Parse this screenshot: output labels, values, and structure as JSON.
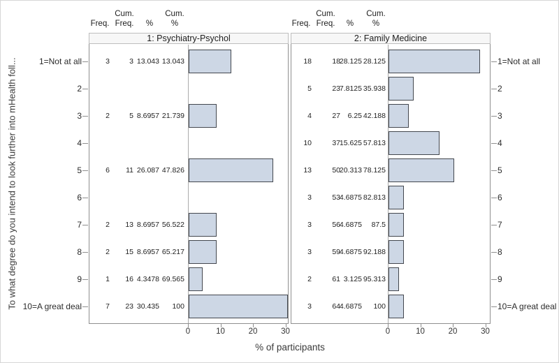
{
  "chart_data": {
    "type": "bar",
    "orientation": "horizontal",
    "title": "",
    "xlabel": "% of participants",
    "ylabel": "To what degree do you intend to look further into mHealth foll...",
    "x_ticks": [
      0,
      10,
      20,
      30
    ],
    "xlim": [
      0,
      31
    ],
    "grid": "off",
    "bar_fill": "#cdd7e5",
    "bar_border": "#43474e",
    "categories": [
      "1=Not at all",
      "2",
      "3",
      "4",
      "5",
      "6",
      "7",
      "8",
      "9",
      "10=A great deal"
    ],
    "column_headers": [
      {
        "line1": "",
        "line2": "Freq."
      },
      {
        "line1": "Cum.",
        "line2": "Freq."
      },
      {
        "line1": "",
        "line2": "%"
      },
      {
        "line1": "Cum.",
        "line2": "%"
      }
    ],
    "panels": [
      {
        "title": "1: Psychiatry-Psychol",
        "rows": [
          {
            "freq": "3",
            "cum_freq": "3",
            "pct": "13.043",
            "cum_pct": "13.043",
            "bar_pct": 13.043
          },
          {
            "freq": "",
            "cum_freq": "",
            "pct": "",
            "cum_pct": "",
            "bar_pct": null
          },
          {
            "freq": "2",
            "cum_freq": "5",
            "pct": "8.6957",
            "cum_pct": "21.739",
            "bar_pct": 8.6957
          },
          {
            "freq": "",
            "cum_freq": "",
            "pct": "",
            "cum_pct": "",
            "bar_pct": null
          },
          {
            "freq": "6",
            "cum_freq": "11",
            "pct": "26.087",
            "cum_pct": "47.826",
            "bar_pct": 26.087
          },
          {
            "freq": "",
            "cum_freq": "",
            "pct": "",
            "cum_pct": "",
            "bar_pct": null
          },
          {
            "freq": "2",
            "cum_freq": "13",
            "pct": "8.6957",
            "cum_pct": "56.522",
            "bar_pct": 8.6957
          },
          {
            "freq": "2",
            "cum_freq": "15",
            "pct": "8.6957",
            "cum_pct": "65.217",
            "bar_pct": 8.6957
          },
          {
            "freq": "1",
            "cum_freq": "16",
            "pct": "4.3478",
            "cum_pct": "69.565",
            "bar_pct": 4.3478
          },
          {
            "freq": "7",
            "cum_freq": "23",
            "pct": "30.435",
            "cum_pct": "100",
            "bar_pct": 30.435
          }
        ]
      },
      {
        "title": "2: Family Medicine",
        "rows": [
          {
            "freq": "18",
            "cum_freq": "18",
            "pct": "28.125",
            "cum_pct": "28.125",
            "bar_pct": 28.125
          },
          {
            "freq": "5",
            "cum_freq": "23",
            "pct": "7.8125",
            "cum_pct": "35.938",
            "bar_pct": 7.8125
          },
          {
            "freq": "4",
            "cum_freq": "27",
            "pct": "6.25",
            "cum_pct": "42.188",
            "bar_pct": 6.25
          },
          {
            "freq": "10",
            "cum_freq": "37",
            "pct": "15.625",
            "cum_pct": "57.813",
            "bar_pct": 15.625
          },
          {
            "freq": "13",
            "cum_freq": "50",
            "pct": "20.313",
            "cum_pct": "78.125",
            "bar_pct": 20.313
          },
          {
            "freq": "3",
            "cum_freq": "53",
            "pct": "4.6875",
            "cum_pct": "82.813",
            "bar_pct": 4.6875
          },
          {
            "freq": "3",
            "cum_freq": "56",
            "pct": "4.6875",
            "cum_pct": "87.5",
            "bar_pct": 4.6875
          },
          {
            "freq": "3",
            "cum_freq": "59",
            "pct": "4.6875",
            "cum_pct": "92.188",
            "bar_pct": 4.6875
          },
          {
            "freq": "2",
            "cum_freq": "61",
            "pct": "3.125",
            "cum_pct": "95.313",
            "bar_pct": 3.125
          },
          {
            "freq": "3",
            "cum_freq": "64",
            "pct": "4.6875",
            "cum_pct": "100",
            "bar_pct": 4.6875
          }
        ]
      }
    ]
  }
}
